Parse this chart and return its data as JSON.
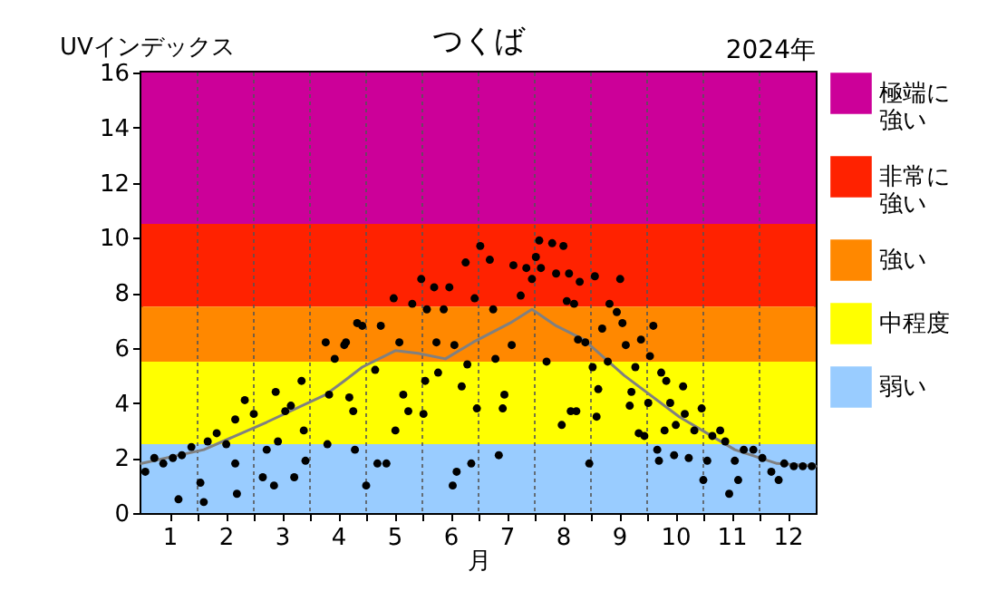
{
  "chart_data": {
    "type": "scatter",
    "title": "つくば",
    "xlabel": "月",
    "ylabel": "UVインデックス",
    "annotations": [
      "2024年"
    ],
    "xlim": [
      0.5,
      12.5
    ],
    "ylim": [
      0,
      16
    ],
    "yticks": [
      0,
      2,
      4,
      6,
      8,
      10,
      12,
      14,
      16
    ],
    "xticks": [
      1,
      {
        "value": 1.5,
        "label": null
      },
      2,
      {
        "value": 2.5,
        "label": null
      },
      3,
      {
        "value": 3.5,
        "label": null
      },
      4,
      {
        "value": 4.5,
        "label": null
      },
      5,
      {
        "value": 5.5,
        "label": null
      },
      6,
      {
        "value": 6.5,
        "label": null
      },
      7,
      {
        "value": 7.5,
        "label": null
      },
      8,
      {
        "value": 8.5,
        "label": null
      },
      9,
      {
        "value": 9.5,
        "label": null
      },
      10,
      {
        "value": 10.5,
        "label": null
      },
      11,
      {
        "value": 11.5,
        "label": null
      },
      12
    ],
    "grid": "x",
    "legend": "right",
    "bands": [
      {
        "axis": "y",
        "from": 10.5,
        "to": 16,
        "label": "極端に強い",
        "color": "#cc0099"
      },
      {
        "axis": "y",
        "from": 7.5,
        "to": 10.5,
        "label": "非常に強い",
        "color": "#ff2200"
      },
      {
        "axis": "y",
        "from": 5.5,
        "to": 7.5,
        "label": "強い",
        "color": "#ff8800"
      },
      {
        "axis": "y",
        "from": 2.5,
        "to": 5.5,
        "label": "中程度",
        "color": "#ffff00"
      },
      {
        "axis": "y",
        "from": 0,
        "to": 2.5,
        "label": "弱い",
        "color": "#99ccff"
      }
    ],
    "series": [
      {
        "type": "line",
        "color": "#808080",
        "x": [
          0.5,
          1.61,
          2.73,
          3.78,
          4.11,
          4.43,
          5.02,
          5.42,
          5.91,
          6.4,
          7.06,
          7.45,
          7.88,
          8.37,
          9.09,
          10.07,
          11.06,
          11.81,
          12.5
        ],
        "values": [
          1.8,
          2.3,
          3.3,
          4.3,
          4.8,
          5.3,
          5.9,
          5.8,
          5.6,
          6.2,
          6.9,
          7.4,
          6.8,
          6.3,
          5.0,
          3.5,
          2.3,
          1.8,
          1.7
        ]
      },
      {
        "type": "scatter",
        "color": "#000000",
        "marker": "circle",
        "x": [
          0.57,
          0.73,
          0.89,
          1.06,
          1.22,
          1.16,
          1.39,
          1.55,
          1.61,
          1.68,
          1.84,
          2.01,
          2.17,
          2.17,
          2.2,
          2.34,
          2.5,
          2.73,
          2.66,
          2.89,
          3.06,
          2.93,
          2.86,
          3.16,
          3.22,
          3.39,
          3.42,
          3.35,
          3.78,
          3.84,
          3.81,
          3.94,
          4.11,
          4.27,
          4.3,
          4.34,
          4.14,
          4.2,
          4.5,
          4.43,
          4.76,
          4.66,
          4.7,
          4.86,
          4.99,
          5.09,
          5.02,
          5.16,
          5.25,
          5.32,
          5.48,
          5.52,
          5.55,
          5.58,
          5.71,
          5.75,
          5.78,
          5.88,
          5.98,
          6.04,
          6.11,
          6.07,
          6.2,
          6.27,
          6.37,
          6.3,
          6.43,
          6.47,
          6.53,
          6.7,
          6.76,
          6.8,
          6.86,
          6.93,
          6.96,
          7.09,
          7.12,
          7.25,
          7.35,
          7.45,
          7.52,
          7.58,
          7.61,
          7.71,
          7.81,
          7.88,
          7.98,
          8.07,
          8.14,
          8.01,
          8.11,
          8.2,
          8.24,
          8.27,
          8.3,
          8.4,
          8.47,
          8.53,
          8.57,
          8.6,
          8.63,
          8.7,
          8.8,
          8.83,
          8.96,
          9.02,
          9.06,
          9.12,
          9.19,
          9.22,
          9.29,
          9.35,
          9.39,
          9.45,
          9.52,
          9.55,
          9.61,
          9.68,
          9.71,
          9.75,
          9.81,
          9.84,
          9.91,
          9.98,
          10.01,
          10.14,
          10.17,
          10.24,
          10.34,
          10.47,
          10.5,
          10.57,
          10.66,
          10.8,
          10.89,
          10.96,
          11.06,
          11.12,
          11.22,
          11.39,
          11.55,
          11.71,
          11.84,
          11.94,
          12.11,
          12.27,
          12.43
        ],
        "values": [
          1.5,
          2.0,
          1.8,
          2.0,
          2.1,
          0.5,
          2.4,
          1.1,
          0.4,
          2.6,
          2.9,
          2.5,
          3.4,
          1.8,
          0.7,
          4.1,
          3.6,
          2.3,
          1.3,
          4.4,
          3.7,
          2.6,
          1.0,
          3.9,
          1.3,
          3.0,
          1.9,
          4.8,
          6.2,
          4.3,
          2.5,
          5.6,
          6.1,
          3.7,
          2.3,
          6.9,
          6.2,
          4.2,
          1.0,
          6.8,
          6.8,
          5.2,
          1.8,
          1.8,
          7.8,
          6.2,
          3.0,
          4.3,
          3.7,
          7.6,
          8.5,
          3.6,
          4.8,
          7.4,
          8.2,
          6.2,
          5.1,
          7.4,
          8.2,
          1.0,
          1.5,
          6.1,
          4.6,
          9.1,
          1.8,
          5.4,
          7.8,
          3.8,
          9.7,
          9.2,
          7.4,
          5.6,
          2.1,
          3.8,
          4.3,
          6.1,
          9.0,
          7.9,
          8.9,
          8.5,
          9.3,
          9.9,
          8.9,
          5.5,
          9.8,
          8.7,
          3.2,
          7.7,
          3.7,
          9.7,
          8.7,
          7.6,
          3.7,
          6.3,
          8.4,
          6.2,
          1.8,
          5.3,
          8.6,
          3.5,
          4.5,
          6.7,
          5.5,
          7.6,
          7.3,
          8.5,
          6.9,
          6.1,
          3.9,
          4.4,
          5.3,
          2.9,
          6.3,
          2.8,
          4.0,
          5.7,
          6.8,
          2.3,
          1.9,
          5.1,
          3.0,
          4.8,
          4.0,
          2.1,
          3.2,
          4.6,
          3.6,
          2.0,
          3.0,
          3.8,
          1.2,
          1.9,
          2.8,
          3.0,
          2.6,
          0.7,
          1.9,
          1.2,
          2.3,
          2.3,
          2.0,
          1.5,
          1.2,
          1.8,
          1.7,
          1.7,
          1.7
        ]
      }
    ]
  }
}
